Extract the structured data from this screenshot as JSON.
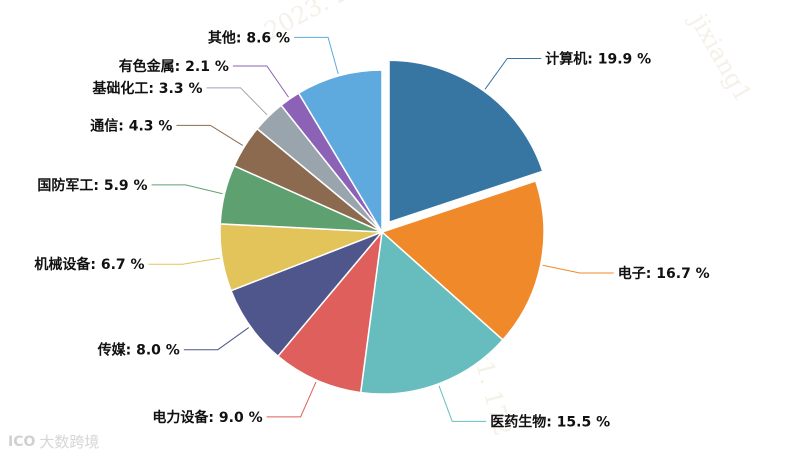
{
  "chart_data": {
    "type": "pie",
    "title": "",
    "categories": [
      "计算机",
      "电子",
      "医药生物",
      "电力设备",
      "传媒",
      "机械设备",
      "国防军工",
      "通信",
      "基础化工",
      "有色金属",
      "其他"
    ],
    "values": [
      19.9,
      16.7,
      15.5,
      9.0,
      8.0,
      6.7,
      5.9,
      4.3,
      3.3,
      2.1,
      8.6
    ],
    "unit": "%",
    "colors": [
      "#3776a2",
      "#f0892a",
      "#67bdbe",
      "#de5f5b",
      "#4f568c",
      "#e2c45a",
      "#5fa071",
      "#8b6a4f",
      "#9aa4ad",
      "#8b62b6",
      "#5ea9de"
    ],
    "exploded_slice": "计算机",
    "legend": "none",
    "label_texts": [
      "计算机: 19.9 %",
      "电子: 16.7 %",
      "医药生物: 15.5 %",
      "电力设备: 9.0 %",
      "传媒: 8.0 %",
      "机械设备: 6.7 %",
      "国防军工: 5.9 %",
      "通信: 4.3 %",
      "基础化工: 3.3 %",
      "有色金属: 2.1 %",
      "其他: 8.6 %"
    ]
  },
  "watermarks": {
    "brand": "大数跨境",
    "brand_logo": "ICO",
    "phrase_1": "2023. 2023-01-",
    "phrase_2": "jixiang1",
    "phrase_3": "jixiang1. 172"
  }
}
